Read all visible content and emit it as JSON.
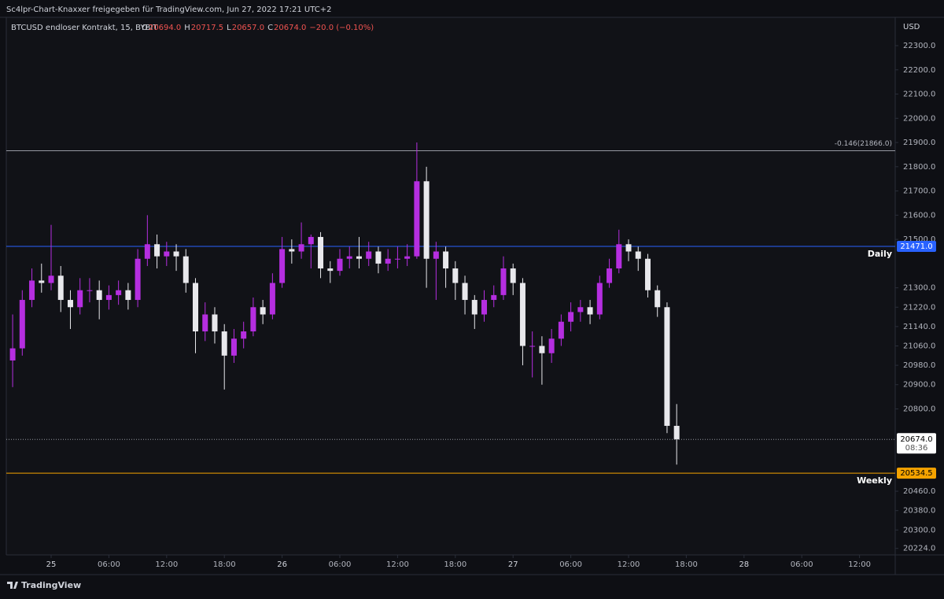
{
  "header": {
    "shared_by": "Sc4lpr-Chart-Knaxxer freigegeben für TradingView.com, Jun 27, 2022 17:21 UTC+2"
  },
  "chart_data": {
    "type": "candlestick",
    "symbol": "BTCUSD endloser Kontrakt, 15, BYBIT",
    "legend": [
      {
        "key": "O",
        "value": "20694.0"
      },
      {
        "key": "H",
        "value": "20717.5"
      },
      {
        "key": "L",
        "value": "20657.0"
      },
      {
        "key": "C",
        "value": "20674.0"
      }
    ],
    "change": "−20.0 (−0.10%)",
    "up_color": "#b52ee0",
    "down_color": "#e8e8ec",
    "x": [
      -4,
      -3,
      -2,
      -1,
      0,
      1,
      2,
      3,
      4,
      5,
      6,
      7,
      8,
      9,
      10,
      11,
      12,
      13,
      14,
      15,
      16,
      17,
      18,
      19,
      20,
      21,
      22,
      23,
      24,
      25,
      26,
      27,
      28,
      29,
      30,
      31,
      32,
      33,
      34,
      35,
      36,
      37,
      38,
      39,
      40,
      41,
      42,
      43,
      44,
      45,
      46,
      47,
      48,
      49,
      50,
      51,
      52,
      53,
      54,
      55,
      56,
      57,
      58,
      59,
      60,
      61,
      62,
      63,
      64,
      65
    ],
    "open": [
      21000,
      21050,
      21250,
      21330,
      21320,
      21350,
      21250,
      21220,
      21290,
      21290,
      21250,
      21270,
      21290,
      21250,
      21420,
      21480,
      21430,
      21450,
      21430,
      21320,
      21120,
      21190,
      21120,
      21020,
      21090,
      21120,
      21220,
      21190,
      21320,
      21460,
      21450,
      21480,
      21510,
      21380,
      21370,
      21420,
      21430,
      21420,
      21450,
      21400,
      21420,
      21420,
      21430,
      21740,
      21420,
      21450,
      21380,
      21320,
      21250,
      21190,
      21250,
      21270,
      21380,
      21320,
      21060,
      21060,
      21030,
      21090,
      21160,
      21200,
      21220,
      21190,
      21320,
      21380,
      21480,
      21450,
      21420,
      21290,
      21220,
      20730
    ],
    "high": [
      21190,
      21290,
      21380,
      21400,
      21560,
      21390,
      21290,
      21340,
      21340,
      21330,
      21310,
      21330,
      21320,
      21460,
      21600,
      21520,
      21490,
      21480,
      21460,
      21340,
      21240,
      21220,
      21150,
      21130,
      21160,
      21260,
      21250,
      21360,
      21510,
      21500,
      21570,
      21520,
      21530,
      21410,
      21460,
      21470,
      21510,
      21490,
      21470,
      21460,
      21470,
      21480,
      21900,
      21800,
      21490,
      21470,
      21410,
      21350,
      21270,
      21290,
      21310,
      21430,
      21400,
      21340,
      21120,
      21100,
      21130,
      21190,
      21240,
      21250,
      21250,
      21350,
      21420,
      21540,
      21500,
      21470,
      21440,
      21310,
      21240,
      20820
    ],
    "low": [
      20890,
      21020,
      21220,
      21280,
      21290,
      21200,
      21130,
      21190,
      21240,
      21170,
      21210,
      21230,
      21210,
      21220,
      21390,
      21380,
      21390,
      21370,
      21280,
      21030,
      21080,
      21070,
      20880,
      20990,
      21050,
      21100,
      21150,
      21170,
      21300,
      21400,
      21420,
      21380,
      21340,
      21320,
      21350,
      21380,
      21380,
      21390,
      21360,
      21370,
      21380,
      21390,
      21420,
      21300,
      21250,
      21300,
      21250,
      21190,
      21130,
      21160,
      21220,
      21250,
      21270,
      20980,
      20930,
      20900,
      20990,
      21060,
      21120,
      21160,
      21150,
      21170,
      21300,
      21360,
      21410,
      21370,
      21260,
      21180,
      20700,
      20570
    ],
    "close": [
      21050,
      21250,
      21330,
      21320,
      21350,
      21250,
      21220,
      21290,
      21290,
      21250,
      21270,
      21290,
      21250,
      21420,
      21480,
      21430,
      21450,
      21430,
      21320,
      21120,
      21190,
      21120,
      21020,
      21090,
      21120,
      21220,
      21190,
      21320,
      21460,
      21450,
      21480,
      21510,
      21380,
      21370,
      21420,
      21430,
      21420,
      21450,
      21400,
      21420,
      21420,
      21430,
      21740,
      21420,
      21450,
      21380,
      21320,
      21250,
      21190,
      21250,
      21270,
      21380,
      21320,
      21060,
      21060,
      21030,
      21090,
      21160,
      21200,
      21220,
      21190,
      21320,
      21380,
      21480,
      21450,
      21420,
      21290,
      21220,
      20730,
      20674
    ],
    "xlim": [
      -4.66,
      87.71
    ],
    "xticks": [
      {
        "value": 0,
        "label": "25"
      },
      {
        "value": 6,
        "label": "06:00"
      },
      {
        "value": 12,
        "label": "12:00"
      },
      {
        "value": 18,
        "label": "18:00"
      },
      {
        "value": 24,
        "label": "26"
      },
      {
        "value": 30,
        "label": "06:00"
      },
      {
        "value": 36,
        "label": "12:00"
      },
      {
        "value": 42,
        "label": "18:00"
      },
      {
        "value": 48,
        "label": "27"
      },
      {
        "value": 54,
        "label": "06:00"
      },
      {
        "value": 60,
        "label": "12:00"
      },
      {
        "value": 66,
        "label": "18:00"
      },
      {
        "value": 72,
        "label": "28"
      },
      {
        "value": 78,
        "label": "06:00"
      },
      {
        "value": 84,
        "label": "12:00"
      }
    ],
    "ylim": [
      20197,
      22417
    ],
    "y_unit": "USD",
    "yticks": [
      {
        "value": 22300,
        "label": "22300.0"
      },
      {
        "value": 22200,
        "label": "22200.0"
      },
      {
        "value": 22100,
        "label": "22100.0"
      },
      {
        "value": 22000,
        "label": "22000.0"
      },
      {
        "value": 21900,
        "label": "21900.0"
      },
      {
        "value": 21800,
        "label": "21800.0"
      },
      {
        "value": 21700,
        "label": "21700.0"
      },
      {
        "value": 21600,
        "label": "21600.0"
      },
      {
        "value": 21500,
        "label": "21500.0"
      },
      {
        "value": 21300,
        "label": "21300.0"
      },
      {
        "value": 21220,
        "label": "21220.0"
      },
      {
        "value": 21140,
        "label": "21140.0"
      },
      {
        "value": 21060,
        "label": "21060.0"
      },
      {
        "value": 20980,
        "label": "20980.0"
      },
      {
        "value": 20900,
        "label": "20900.0"
      },
      {
        "value": 20800,
        "label": "20800.0"
      },
      {
        "value": 20460,
        "label": "20460.0"
      },
      {
        "value": 20380,
        "label": "20380.0"
      },
      {
        "value": 20300,
        "label": "20300.0"
      },
      {
        "value": 20224,
        "label": "20224.0"
      }
    ],
    "levels": [
      {
        "label": "-0.146(21866.0)",
        "value": 21866,
        "color": "#9598a1"
      },
      {
        "label": "Daily",
        "value": 21471,
        "price_label": "21471.0",
        "color": "#2962ff"
      },
      {
        "label": "Weekly",
        "value": 20534.5,
        "price_label": "20534.5",
        "color": "#f5a300"
      }
    ],
    "last": {
      "value": 20674,
      "label": "20674.0",
      "countdown": "08:36"
    }
  },
  "footer": {
    "brand": "TradingView"
  }
}
